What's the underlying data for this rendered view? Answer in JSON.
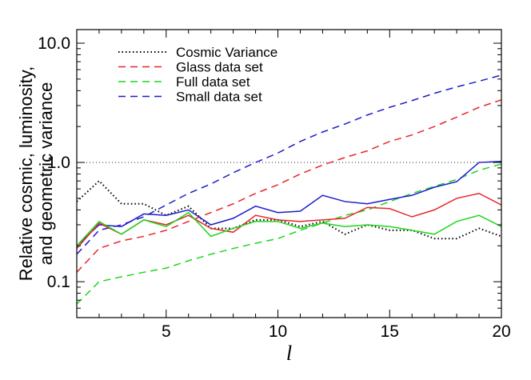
{
  "chart_data": {
    "type": "line",
    "xlabel": "l",
    "ylabel_lines": [
      "Relative cosmic, luminosity,",
      "and geometric variance"
    ],
    "xlim": [
      1,
      20
    ],
    "ylim": [
      0.05,
      13
    ],
    "yscale": "log",
    "xticks": [
      5,
      10,
      15,
      20
    ],
    "xtick_labels": [
      "5",
      "10",
      "15",
      "20"
    ],
    "yticks": [
      0.1,
      1.0,
      10.0
    ],
    "ytick_labels": [
      "0.1",
      "1.0",
      "10.0"
    ],
    "legend_position": "top-left",
    "reference_line": {
      "y": 1.0,
      "style": "dotted",
      "color": "#000000"
    },
    "x": [
      1,
      2,
      3,
      4,
      5,
      6,
      7,
      8,
      9,
      10,
      11,
      12,
      13,
      14,
      15,
      16,
      17,
      18,
      19,
      20
    ],
    "series": [
      {
        "name": "Cosmic Variance",
        "style": "dotted",
        "color": "#000000",
        "legend": true,
        "values": [
          0.47,
          0.7,
          0.45,
          0.45,
          0.36,
          0.43,
          0.28,
          0.28,
          0.33,
          0.33,
          0.29,
          0.32,
          0.25,
          0.3,
          0.27,
          0.27,
          0.23,
          0.23,
          0.28,
          0.24
        ]
      },
      {
        "name": "Glass data set",
        "style": "dashed",
        "color": "#e8262a",
        "legend": true,
        "values": [
          0.12,
          0.19,
          0.22,
          0.24,
          0.27,
          0.32,
          0.38,
          0.45,
          0.55,
          0.65,
          0.8,
          0.95,
          1.1,
          1.25,
          1.5,
          1.7,
          2.0,
          2.4,
          2.9,
          3.35
        ]
      },
      {
        "name": "Full data set",
        "style": "dashed",
        "color": "#1ed61e",
        "legend": true,
        "values": [
          0.065,
          0.1,
          0.11,
          0.12,
          0.13,
          0.15,
          0.17,
          0.19,
          0.21,
          0.23,
          0.27,
          0.31,
          0.36,
          0.4,
          0.47,
          0.55,
          0.63,
          0.72,
          0.86,
          0.97
        ]
      },
      {
        "name": "Small data set",
        "style": "dashed",
        "color": "#1c1ccc",
        "legend": true,
        "values": [
          0.17,
          0.27,
          0.3,
          0.35,
          0.44,
          0.55,
          0.66,
          0.82,
          1.0,
          1.2,
          1.5,
          1.8,
          2.1,
          2.5,
          2.9,
          3.3,
          3.8,
          4.3,
          4.8,
          5.4
        ]
      },
      {
        "name": "",
        "style": "solid",
        "color": "#1c1ccc",
        "legend": false,
        "values": [
          0.2,
          0.3,
          0.29,
          0.37,
          0.36,
          0.4,
          0.3,
          0.34,
          0.43,
          0.38,
          0.39,
          0.53,
          0.47,
          0.45,
          0.49,
          0.53,
          0.62,
          0.69,
          1.0,
          1.02
        ]
      },
      {
        "name": "",
        "style": "solid",
        "color": "#e8262a",
        "legend": false,
        "values": [
          0.19,
          0.31,
          0.25,
          0.33,
          0.3,
          0.36,
          0.28,
          0.26,
          0.36,
          0.33,
          0.32,
          0.33,
          0.34,
          0.42,
          0.41,
          0.35,
          0.4,
          0.5,
          0.55,
          0.44
        ]
      },
      {
        "name": "",
        "style": "solid",
        "color": "#1ed61e",
        "legend": false,
        "values": [
          0.2,
          0.32,
          0.25,
          0.33,
          0.29,
          0.38,
          0.24,
          0.28,
          0.32,
          0.32,
          0.28,
          0.31,
          0.29,
          0.3,
          0.29,
          0.27,
          0.25,
          0.32,
          0.36,
          0.29
        ]
      }
    ]
  }
}
